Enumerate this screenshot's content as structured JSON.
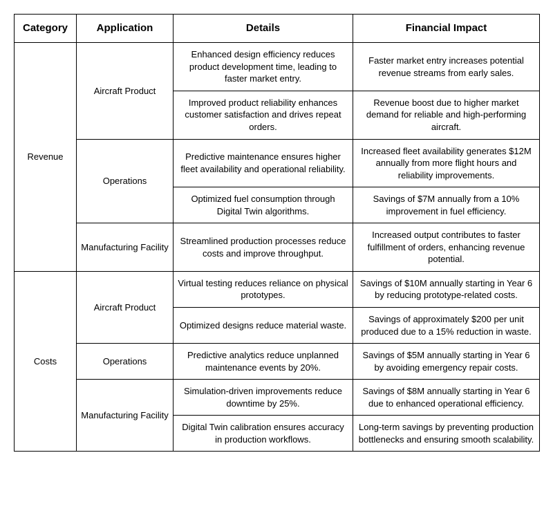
{
  "table": {
    "headers": {
      "category": "Category",
      "application": "Application",
      "details": "Details",
      "impact": "Financial Impact"
    },
    "col_widths": {
      "category": 90,
      "application": 140,
      "details": 260,
      "impact": 270
    },
    "border_color": "#000000",
    "background_color": "#ffffff",
    "font_family": "Arial, Helvetica, sans-serif",
    "header_fontsize": 15,
    "cell_fontsize": 13,
    "categories": [
      {
        "name": "Revenue",
        "applications": [
          {
            "name": "Aircraft Product",
            "rows": [
              {
                "details": "Enhanced design efficiency reduces product development time, leading to faster market entry.",
                "impact": "Faster market entry increases potential revenue streams from early sales."
              },
              {
                "details": "Improved product reliability enhances customer satisfaction and drives repeat orders.",
                "impact": "Revenue boost due to higher market demand for reliable and high-performing aircraft."
              }
            ]
          },
          {
            "name": "Operations",
            "rows": [
              {
                "details": "Predictive maintenance ensures higher fleet availability and operational reliability.",
                "impact": "Increased fleet availability generates $12M annually from more flight hours and reliability improvements."
              },
              {
                "details": "Optimized fuel consumption through Digital Twin algorithms.",
                "impact": "Savings of $7M annually from a 10% improvement in fuel efficiency."
              }
            ]
          },
          {
            "name": "Manufacturing Facility",
            "rows": [
              {
                "details": "Streamlined production processes reduce costs and improve throughput.",
                "impact": "Increased output contributes to faster fulfillment of orders, enhancing revenue potential."
              }
            ]
          }
        ]
      },
      {
        "name": "Costs",
        "applications": [
          {
            "name": "Aircraft Product",
            "rows": [
              {
                "details": "Virtual testing reduces reliance on physical prototypes.",
                "impact": "Savings of $10M annually starting in Year 6 by reducing prototype-related costs."
              },
              {
                "details": "Optimized designs reduce material waste.",
                "impact": "Savings of approximately $200 per unit produced due to a 15% reduction in waste."
              }
            ]
          },
          {
            "name": "Operations",
            "rows": [
              {
                "details": "Predictive analytics reduce unplanned maintenance events by 20%.",
                "impact": "Savings of $5M annually starting in Year 6 by avoiding emergency repair costs."
              }
            ]
          },
          {
            "name": "Manufacturing Facility",
            "rows": [
              {
                "details": "Simulation-driven improvements reduce downtime by 25%.",
                "impact": "Savings of $8M annually starting in Year 6 due to enhanced operational efficiency."
              },
              {
                "details": "Digital Twin calibration ensures accuracy in production workflows.",
                "impact": "Long-term savings by preventing production bottlenecks and ensuring smooth scalability."
              }
            ]
          }
        ]
      }
    ]
  }
}
